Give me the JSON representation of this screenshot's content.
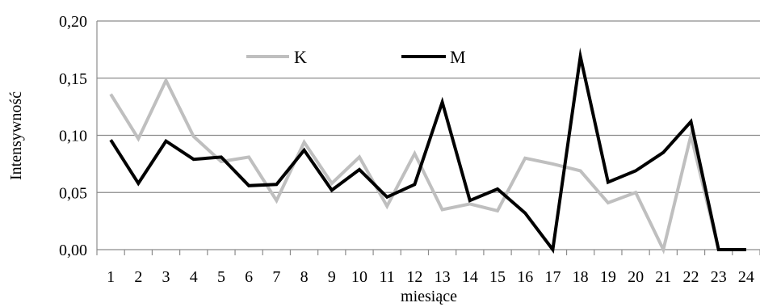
{
  "chart_data": {
    "type": "line",
    "title": "",
    "xlabel": "miesiące",
    "ylabel": "Intensywność",
    "ylim": [
      0,
      0.2
    ],
    "y_ticks": [
      "0,00",
      "0,05",
      "0,10",
      "0,15",
      "0,20"
    ],
    "grid": "horizontal",
    "legend_position": "top-center",
    "categories": [
      "1",
      "2",
      "3",
      "4",
      "5",
      "6",
      "7",
      "8",
      "9",
      "10",
      "11",
      "12",
      "13",
      "14",
      "15",
      "16",
      "17",
      "18",
      "19",
      "20",
      "21",
      "22",
      "23",
      "24"
    ],
    "series": [
      {
        "name": "K",
        "color": "#bfbfbf",
        "values": [
          0.136,
          0.097,
          0.148,
          0.099,
          0.077,
          0.081,
          0.043,
          0.094,
          0.058,
          0.081,
          0.038,
          0.084,
          0.035,
          0.04,
          0.034,
          0.08,
          0.075,
          0.069,
          0.041,
          0.05,
          0.0,
          0.1,
          0.0,
          0.0
        ]
      },
      {
        "name": "M",
        "color": "#000000",
        "values": [
          0.096,
          0.058,
          0.095,
          0.079,
          0.081,
          0.056,
          0.057,
          0.087,
          0.052,
          0.07,
          0.046,
          0.057,
          0.129,
          0.043,
          0.053,
          0.032,
          0.0,
          0.169,
          0.059,
          0.069,
          0.085,
          0.112,
          0.0,
          0.0
        ]
      }
    ]
  }
}
